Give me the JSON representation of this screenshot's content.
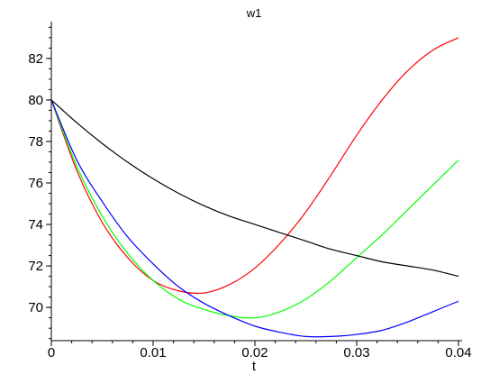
{
  "chart_data": {
    "type": "line",
    "title": "w1",
    "xlabel": "t",
    "ylabel": "",
    "xlim": [
      0,
      0.04
    ],
    "ylim": [
      68.4,
      83.6
    ],
    "xticks": [
      0,
      0.01,
      0.02,
      0.03,
      0.04
    ],
    "xtick_labels": [
      "0",
      "0.01",
      "0.02",
      "0.03",
      "0.04"
    ],
    "yticks": [
      70,
      72,
      74,
      76,
      78,
      80,
      82
    ],
    "ytick_labels": [
      "70",
      "72",
      "74",
      "76",
      "78",
      "80",
      "82"
    ],
    "grid": false,
    "legend": "none",
    "series": [
      {
        "color": "#ff0000",
        "x": [
          0,
          0.0025,
          0.005,
          0.0075,
          0.01,
          0.0125,
          0.015,
          0.0175,
          0.02,
          0.0225,
          0.025,
          0.0275,
          0.03,
          0.0325,
          0.035,
          0.0375,
          0.04
        ],
        "y": [
          80.0,
          76.6,
          74.1,
          72.4,
          71.3,
          70.8,
          70.7,
          71.1,
          71.9,
          73.1,
          74.6,
          76.4,
          78.3,
          80.0,
          81.4,
          82.4,
          83.0
        ]
      },
      {
        "color": "#00ff00",
        "x": [
          0,
          0.0025,
          0.005,
          0.0075,
          0.01,
          0.0125,
          0.015,
          0.0175,
          0.02,
          0.0225,
          0.025,
          0.0275,
          0.03,
          0.0325,
          0.035,
          0.0375,
          0.04
        ],
        "y": [
          80.0,
          76.8,
          74.4,
          72.6,
          71.3,
          70.4,
          69.9,
          69.6,
          69.5,
          69.8,
          70.4,
          71.3,
          72.4,
          73.5,
          74.7,
          75.9,
          77.1
        ]
      },
      {
        "color": "#0000ff",
        "x": [
          0,
          0.0025,
          0.005,
          0.0075,
          0.01,
          0.0125,
          0.015,
          0.0175,
          0.02,
          0.0225,
          0.025,
          0.0275,
          0.03,
          0.0325,
          0.035,
          0.0375,
          0.04
        ],
        "y": [
          80.0,
          77.1,
          75.1,
          73.4,
          72.1,
          71.0,
          70.2,
          69.6,
          69.1,
          68.8,
          68.6,
          68.6,
          68.7,
          68.9,
          69.3,
          69.8,
          70.3
        ]
      },
      {
        "color": "#000000",
        "x": [
          0,
          0.0025,
          0.005,
          0.0075,
          0.01,
          0.0125,
          0.015,
          0.0175,
          0.02,
          0.0225,
          0.025,
          0.0275,
          0.03,
          0.0325,
          0.035,
          0.0375,
          0.04
        ],
        "y": [
          80.0,
          78.9,
          77.9,
          77.0,
          76.2,
          75.5,
          74.9,
          74.4,
          74.0,
          73.6,
          73.2,
          72.8,
          72.5,
          72.2,
          72.0,
          71.8,
          71.5
        ]
      }
    ]
  }
}
